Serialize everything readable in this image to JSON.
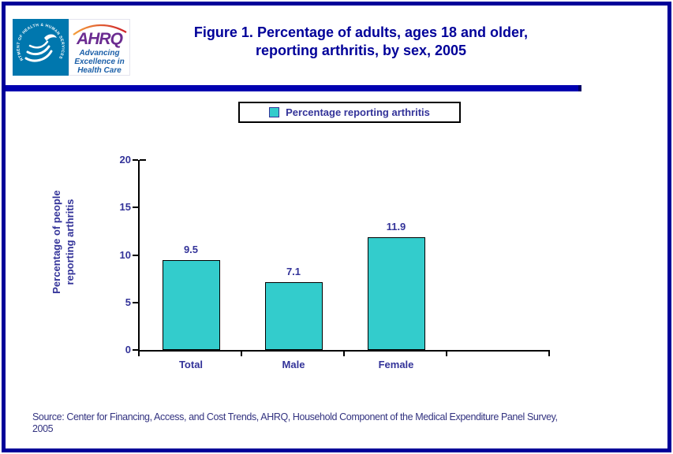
{
  "page": {
    "background": "#FFFFFF",
    "frame_color": "#000099"
  },
  "header": {
    "logo": {
      "hhs_circle_text": "DEPARTMENT OF HEALTH & HUMAN SERVICES • USA",
      "hhs_blue": "#0077AE",
      "ahrq_acronym": "AHRQ",
      "ahrq_purple": "#6B2C91",
      "ahrq_tagline_lines": [
        "Advancing",
        "Excellence in",
        "Health Care"
      ],
      "ahrq_blue": "#1B5FA8"
    },
    "title_lines": [
      "Figure 1. Percentage of adults, ages 18 and older,",
      "reporting arthritis, by sex, 2005"
    ],
    "title_color": "#000099",
    "rule_color": "#0000B0"
  },
  "legend": {
    "label": "Percentage reporting arthritis",
    "swatch_color": "#33CCCC"
  },
  "chart_data": {
    "type": "bar",
    "title": "Figure 1. Percentage of adults, ages 18 and older, reporting arthritis, by sex, 2005",
    "categories": [
      "Total",
      "Male",
      "Female"
    ],
    "values": [
      9.5,
      7.1,
      11.9
    ],
    "value_labels": [
      "9.5",
      "7.1",
      "11.9"
    ],
    "series": [
      {
        "name": "Percentage reporting arthritis",
        "values": [
          9.5,
          7.1,
          11.9
        ]
      }
    ],
    "xlabel": "",
    "ylabel": "Percentage of people reporting arthritis",
    "ylabel_lines": [
      "Percentage of people",
      "reporting arthritis"
    ],
    "ylim": [
      0,
      20
    ],
    "yticks": [
      0,
      5,
      10,
      15,
      20
    ],
    "grid": false,
    "legend_position": "top-center",
    "bar_color": "#33CCCC",
    "bar_border_color": "#000000",
    "axis_color": "#000000",
    "label_color": "#333399",
    "x_slots": 4
  },
  "footer": {
    "source_lines": [
      "Source: Center for Financing, Access, and Cost Trends, AHRQ, Household Component of the Medical Expenditure Panel Survey,",
      "2005"
    ],
    "text_color": "#333380"
  }
}
